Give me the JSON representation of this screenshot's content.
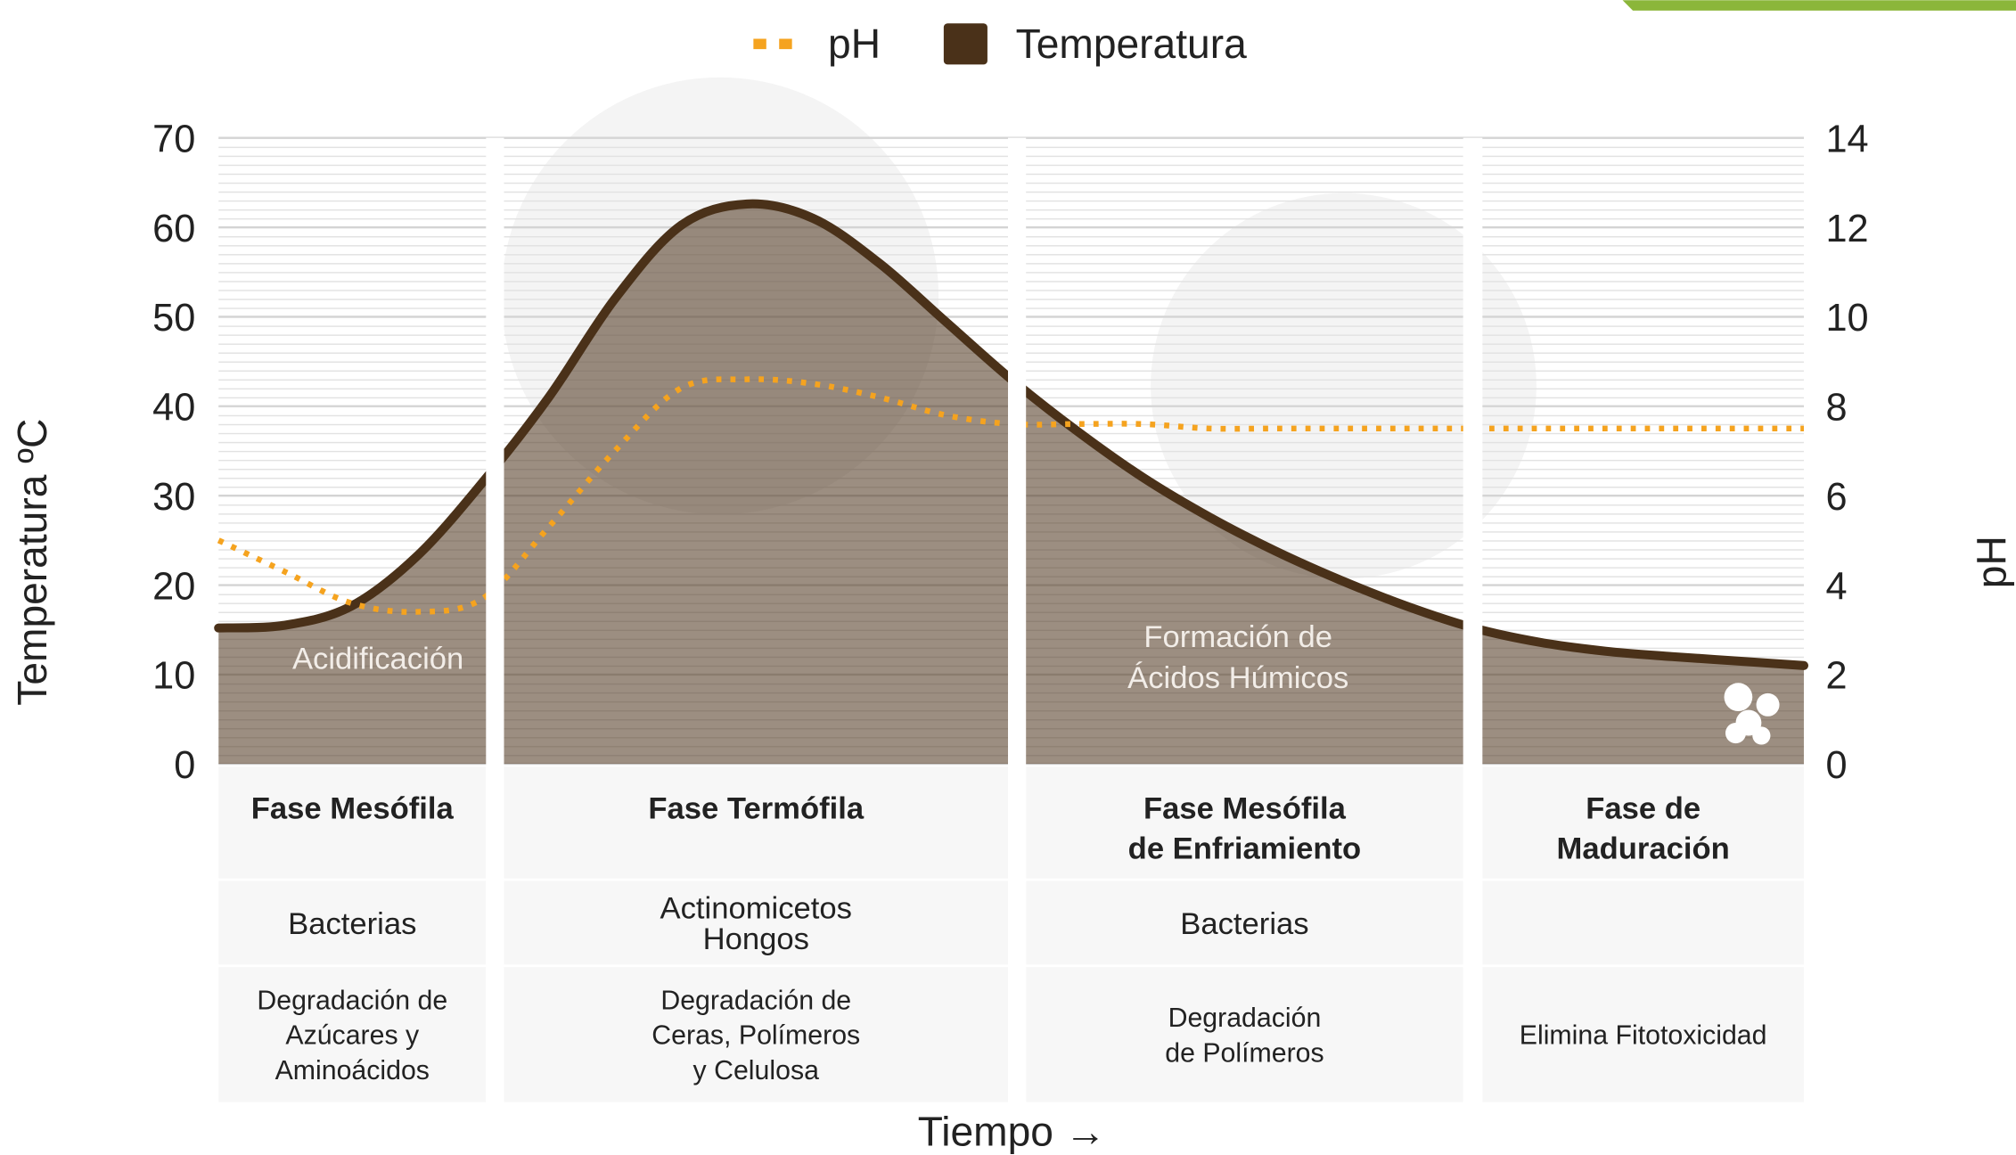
{
  "chart_data": {
    "type": "area_line",
    "legend": "top",
    "categories": [
      null,
      null,
      null,
      null,
      null,
      null,
      null,
      null,
      null,
      null,
      null,
      null,
      null,
      null,
      null,
      null,
      null,
      null,
      null,
      null,
      null,
      null,
      null,
      null,
      null
    ],
    "series": [
      {
        "name": "Temperatura",
        "color": "#4a3119",
        "values": [
          15.2,
          15.5,
          17.6,
          23.2,
          31.5,
          41,
          52,
          60.2,
          62.6,
          61,
          56,
          49.5,
          43,
          37.2,
          32,
          27.6,
          23.8,
          20.5,
          17.6,
          15.2,
          13.6,
          12.6,
          12,
          11.5,
          11
        ]
      },
      {
        "name": "pH",
        "color": "#f5a31f",
        "axis": "y2",
        "values": [
          5.0,
          4.3,
          3.6,
          3.4,
          3.7,
          5.3,
          7.0,
          8.4,
          8.6,
          8.5,
          8.2,
          7.8,
          7.6,
          7.6,
          7.6,
          7.5,
          7.5,
          7.5,
          7.5,
          7.5,
          7.5,
          7.5,
          7.5,
          7.5,
          7.5
        ]
      }
    ],
    "ylim": [
      0,
      70
    ],
    "yticks": [
      0,
      10,
      20,
      30,
      40,
      50,
      60,
      70
    ],
    "y2lim": [
      0,
      14
    ],
    "y2ticks": [
      0,
      2,
      4,
      6,
      8,
      10,
      12,
      14
    ],
    "ylabel": "Temperatura ºC",
    "y2label": "pH",
    "xlabel": "Tiempo →",
    "grid": true,
    "annotations": [
      {
        "lines": [
          "Acidificación"
        ]
      },
      {
        "lines": [
          "Formación de",
          "Ácidos Húmicos"
        ]
      }
    ]
  },
  "table": {
    "columns": [
      {
        "phase": [
          "Fase Mesófila"
        ],
        "organisms": [
          "Bacterias"
        ],
        "process": [
          "Degradación de",
          "Azúcares y",
          "Aminoácidos"
        ]
      },
      {
        "phase": [
          "Fase Termófila"
        ],
        "organisms": [
          "Actinomicetos",
          "Hongos"
        ],
        "process": [
          "Degradación de",
          "Ceras, Polímeros",
          "y Celulosa"
        ]
      },
      {
        "phase": [
          "Fase Mesófila",
          "de Enfriamiento"
        ],
        "organisms": [
          "Bacterias"
        ],
        "process": [
          "Degradación",
          "de Polímeros"
        ]
      },
      {
        "phase": [
          "Fase de",
          "Maduración"
        ],
        "organisms": null,
        "process": [
          "Elimina Fitotoxicidad"
        ]
      }
    ]
  }
}
